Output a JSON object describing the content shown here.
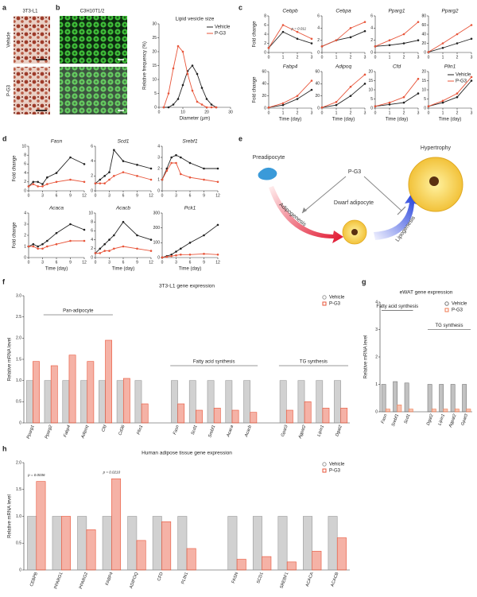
{
  "panel_labels": [
    "a",
    "b",
    "c",
    "d",
    "e",
    "f",
    "g",
    "h"
  ],
  "images": {
    "a_title": "3T3-L1",
    "a_rows": [
      "Vehicle",
      "P-G3"
    ],
    "b_title": "C3H10T1/2"
  },
  "diagram": {
    "nodes": [
      "Preadipocyte",
      "P-G3",
      "Dwarf adipocyte",
      "Hypertrophy"
    ],
    "edges": [
      "Adipogenesis",
      "Lipogenesis"
    ]
  },
  "chart_data": [
    {
      "type": "line",
      "title": "Lipid vesicle size",
      "xlabel": "Diameter (µm)",
      "ylabel": "Relative frequency (%)",
      "x": [
        2,
        4,
        6,
        8,
        10,
        12,
        14,
        16,
        18,
        20,
        22,
        24
      ],
      "xlim": [
        0,
        30
      ],
      "xticks": [
        0,
        10,
        20,
        30
      ],
      "ylim": [
        0,
        30
      ],
      "yticks": [
        0,
        5,
        10,
        15,
        20,
        25,
        30
      ],
      "legend": true,
      "series": [
        {
          "name": "Vehicle",
          "color": "#222222",
          "values": [
            0,
            0,
            1,
            3,
            8,
            13,
            15,
            12,
            7,
            3,
            1,
            0
          ]
        },
        {
          "name": "P-G3",
          "color": "#e8553a",
          "values": [
            0,
            5,
            14,
            22,
            20,
            12,
            6,
            2,
            1,
            0,
            0,
            0
          ]
        }
      ]
    },
    {
      "type": "line",
      "title": "Cebpb",
      "ylabel": "Fold change",
      "x": [
        0,
        1,
        2,
        3
      ],
      "xlim": [
        0,
        3
      ],
      "xticks": [
        0,
        1,
        2,
        3
      ],
      "ylim": [
        0,
        8
      ],
      "yticks": [
        0,
        2,
        4,
        6,
        8
      ],
      "annotations": [
        "p = 0.011"
      ],
      "series": [
        {
          "name": "Vehicle",
          "color": "#222222",
          "values": [
            1,
            4.5,
            3,
            2
          ]
        },
        {
          "name": "P-G3",
          "color": "#e8553a",
          "values": [
            1,
            6,
            4.5,
            3
          ]
        }
      ]
    },
    {
      "type": "line",
      "title": "Cebpa",
      "x": [
        0,
        1,
        2,
        3
      ],
      "xlim": [
        0,
        3
      ],
      "xticks": [
        0,
        1,
        2,
        3
      ],
      "ylim": [
        0,
        6
      ],
      "yticks": [
        0,
        2,
        4,
        6
      ],
      "series": [
        {
          "name": "Vehicle",
          "color": "#222222",
          "values": [
            1,
            2,
            2.5,
            3.5
          ]
        },
        {
          "name": "P-G3",
          "color": "#e8553a",
          "values": [
            1,
            2,
            4,
            5
          ]
        }
      ]
    },
    {
      "type": "line",
      "title": "Pparg1",
      "x": [
        0,
        1,
        2,
        3
      ],
      "xlim": [
        0,
        3
      ],
      "xticks": [
        0,
        1,
        2,
        3
      ],
      "ylim": [
        0,
        6
      ],
      "yticks": [
        0,
        2,
        4,
        6
      ],
      "series": [
        {
          "name": "Vehicle",
          "color": "#222222",
          "values": [
            1,
            1.2,
            1.5,
            2
          ]
        },
        {
          "name": "P-G3",
          "color": "#e8553a",
          "values": [
            1,
            2,
            3,
            5
          ]
        }
      ]
    },
    {
      "type": "line",
      "title": "Pparg2",
      "x": [
        0,
        1,
        2,
        3
      ],
      "xlim": [
        0,
        3
      ],
      "xticks": [
        0,
        1,
        2,
        3
      ],
      "ylim": [
        0,
        80
      ],
      "yticks": [
        0,
        20,
        40,
        60,
        80
      ],
      "series": [
        {
          "name": "Vehicle",
          "color": "#222222",
          "values": [
            1,
            10,
            20,
            30
          ]
        },
        {
          "name": "P-G3",
          "color": "#e8553a",
          "values": [
            1,
            20,
            40,
            60
          ]
        }
      ]
    },
    {
      "type": "line",
      "title": "Fabp4",
      "ylabel": "Fold change",
      "xlabel": "Time (day)",
      "x": [
        0,
        1,
        2,
        3
      ],
      "xlim": [
        0,
        3
      ],
      "xticks": [
        0,
        1,
        2,
        3
      ],
      "ylim": [
        0,
        60
      ],
      "yticks": [
        0,
        20,
        40,
        60
      ],
      "series": [
        {
          "name": "Vehicle",
          "color": "#222222",
          "values": [
            1,
            5,
            15,
            30
          ]
        },
        {
          "name": "P-G3",
          "color": "#e8553a",
          "values": [
            1,
            8,
            20,
            45
          ]
        }
      ]
    },
    {
      "type": "line",
      "title": "Adipoq",
      "xlabel": "Time (day)",
      "x": [
        0,
        1,
        2,
        3
      ],
      "xlim": [
        0,
        3
      ],
      "xticks": [
        0,
        1,
        2,
        3
      ],
      "ylim": [
        0,
        60
      ],
      "yticks": [
        0,
        20,
        40,
        60
      ],
      "series": [
        {
          "name": "Vehicle",
          "color": "#222222",
          "values": [
            1,
            5,
            20,
            40
          ]
        },
        {
          "name": "P-G3",
          "color": "#e8553a",
          "values": [
            1,
            10,
            35,
            55
          ]
        }
      ]
    },
    {
      "type": "line",
      "title": "Cfd",
      "xlabel": "Time (day)",
      "x": [
        0,
        1,
        2,
        3
      ],
      "xlim": [
        0,
        3
      ],
      "xticks": [
        0,
        1,
        2,
        3
      ],
      "ylim": [
        0,
        20
      ],
      "yticks": [
        0,
        5,
        10,
        15,
        20
      ],
      "series": [
        {
          "name": "Vehicle",
          "color": "#222222",
          "values": [
            1,
            2,
            3,
            8
          ]
        },
        {
          "name": "P-G3",
          "color": "#e8553a",
          "values": [
            1,
            3,
            6,
            16
          ]
        }
      ]
    },
    {
      "type": "line",
      "title": "Plin1",
      "xlabel": "Time (day)",
      "x": [
        0,
        1,
        2,
        3
      ],
      "xlim": [
        0,
        3
      ],
      "xticks": [
        0,
        1,
        2,
        3
      ],
      "ylim": [
        0,
        20
      ],
      "yticks": [
        0,
        5,
        10,
        15,
        20
      ],
      "legend": true,
      "series": [
        {
          "name": "Vehicle",
          "color": "#222222",
          "values": [
            1,
            3,
            6,
            15
          ]
        },
        {
          "name": "P-G3",
          "color": "#e8553a",
          "values": [
            1,
            4,
            8,
            17
          ]
        }
      ]
    },
    {
      "type": "line",
      "title": "Fasn",
      "ylabel": "Fold change",
      "x": [
        0,
        1,
        2,
        3,
        4,
        6,
        9,
        12
      ],
      "xlim": [
        0,
        12
      ],
      "xticks": [
        0,
        3,
        6,
        9,
        12
      ],
      "ylim": [
        0,
        10
      ],
      "yticks": [
        0,
        2,
        4,
        6,
        8,
        10
      ],
      "series": [
        {
          "name": "Vehicle",
          "color": "#222222",
          "values": [
            1,
            2,
            2,
            1.5,
            3,
            4,
            7.5,
            6
          ]
        },
        {
          "name": "P-G3",
          "color": "#e8553a",
          "values": [
            1,
            1.5,
            1,
            1,
            1.5,
            2,
            2.5,
            2
          ]
        }
      ]
    },
    {
      "type": "line",
      "title": "Scd1",
      "x": [
        0,
        1,
        2,
        3,
        4,
        6,
        9,
        12
      ],
      "xlim": [
        0,
        12
      ],
      "xticks": [
        0,
        3,
        6,
        9,
        12
      ],
      "ylim": [
        0,
        6
      ],
      "yticks": [
        0,
        2,
        4,
        6
      ],
      "series": [
        {
          "name": "Vehicle",
          "color": "#222222",
          "values": [
            1,
            1.5,
            2,
            2.5,
            5.5,
            4,
            3.5,
            3
          ]
        },
        {
          "name": "P-G3",
          "color": "#e8553a",
          "values": [
            1,
            1,
            1,
            1.5,
            2,
            2.5,
            2,
            1.5
          ]
        }
      ]
    },
    {
      "type": "line",
      "title": "Srebf1",
      "x": [
        0,
        1,
        2,
        3,
        4,
        6,
        9,
        12
      ],
      "xlim": [
        0,
        12
      ],
      "xticks": [
        0,
        3,
        6,
        9,
        12
      ],
      "ylim": [
        0,
        4
      ],
      "yticks": [
        0,
        1,
        2,
        3,
        4
      ],
      "series": [
        {
          "name": "Vehicle",
          "color": "#222222",
          "values": [
            1,
            2,
            3,
            3.2,
            3,
            2.5,
            2,
            2
          ]
        },
        {
          "name": "P-G3",
          "color": "#e8553a",
          "values": [
            1,
            1.8,
            2.5,
            2.5,
            1.5,
            1.2,
            1,
            0.8
          ]
        }
      ]
    },
    {
      "type": "line",
      "title": "Acaca",
      "ylabel": "Fold change",
      "xlabel": "Time (day)",
      "x": [
        0,
        1,
        2,
        3,
        4,
        6,
        9,
        12
      ],
      "xlim": [
        0,
        12
      ],
      "xticks": [
        0,
        3,
        6,
        9,
        12
      ],
      "ylim": [
        0,
        4
      ],
      "yticks": [
        0,
        1,
        2,
        3,
        4
      ],
      "series": [
        {
          "name": "Vehicle",
          "color": "#222222",
          "values": [
            1,
            1.2,
            1,
            1.2,
            1.5,
            2.2,
            3,
            2.5
          ]
        },
        {
          "name": "P-G3",
          "color": "#e8553a",
          "values": [
            1,
            1,
            0.8,
            0.8,
            1,
            1.2,
            1.5,
            1.5
          ]
        }
      ]
    },
    {
      "type": "line",
      "title": "Acacb",
      "xlabel": "Time (day)",
      "x": [
        0,
        1,
        2,
        3,
        4,
        6,
        9,
        12
      ],
      "xlim": [
        0,
        12
      ],
      "xticks": [
        0,
        3,
        6,
        9,
        12
      ],
      "ylim": [
        0,
        10
      ],
      "yticks": [
        0,
        2,
        4,
        6,
        8,
        10
      ],
      "series": [
        {
          "name": "Vehicle",
          "color": "#222222",
          "values": [
            1,
            2,
            3,
            4,
            5,
            8,
            5,
            4
          ]
        },
        {
          "name": "P-G3",
          "color": "#e8553a",
          "values": [
            1,
            1,
            1.5,
            1.5,
            2,
            2.5,
            2,
            1.5
          ]
        }
      ]
    },
    {
      "type": "line",
      "title": "Pck1",
      "xlabel": "Time (day)",
      "x": [
        0,
        1,
        2,
        3,
        4,
        6,
        9,
        12
      ],
      "xlim": [
        0,
        12
      ],
      "xticks": [
        0,
        3,
        6,
        9,
        12
      ],
      "ylim": [
        0,
        300
      ],
      "yticks": [
        0,
        100,
        200,
        300
      ],
      "series": [
        {
          "name": "Vehicle",
          "color": "#222222",
          "values": [
            1,
            10,
            20,
            40,
            60,
            100,
            150,
            220
          ]
        },
        {
          "name": "P-G3",
          "color": "#e8553a",
          "values": [
            1,
            5,
            10,
            15,
            20,
            20,
            25,
            20
          ]
        }
      ]
    },
    {
      "type": "bar",
      "title": "3T3-L1 gene expression",
      "ylabel": "Relative mRNA level",
      "categories": [
        "Pparg1",
        "Pparg2",
        "Fabp4",
        "Adipoq",
        "Cfd",
        "Cd36",
        "Plin1",
        null,
        "Fasn",
        "Scd1",
        "Srebf1",
        "Acaca",
        "Acacb",
        null,
        "Gpat3",
        "Agpat2",
        "Lipin1",
        "Dgat2"
      ],
      "groups": [
        "Pan-adipocyte",
        "Fatty acid synthesis",
        "TG synthesis"
      ],
      "ylim": [
        0,
        3
      ],
      "yticks": [
        0,
        0.5,
        {
          "value": 1,
          "label": "1.0"
        },
        1.5,
        {
          "value": 2,
          "label": "2.0"
        },
        2.5,
        {
          "value": 3,
          "label": "3.0"
        }
      ],
      "legend": true,
      "series": [
        {
          "name": "Vehicle",
          "color": "#9a9a9a",
          "values": [
            1,
            1,
            1,
            1,
            1,
            1,
            1,
            null,
            1,
            1,
            1,
            1,
            1,
            null,
            1,
            1,
            1,
            1
          ]
        },
        {
          "name": "P-G3",
          "color": "#e8553a",
          "values": [
            1.45,
            1.35,
            1.6,
            1.45,
            1.95,
            1.05,
            0.45,
            null,
            0.45,
            0.3,
            0.35,
            0.3,
            0.25,
            null,
            0.3,
            0.5,
            0.35,
            0.35
          ]
        }
      ]
    },
    {
      "type": "bar",
      "title": "eWAT gene expression",
      "ylabel": "Relative mRNA level",
      "categories": [
        "Fasn",
        "Srebf1",
        "Scd1",
        null,
        "Dgat2",
        "Lipin1",
        "Agpat2",
        "Gpat3"
      ],
      "groups": [
        "Fatty acid synthesis",
        "TG synthesis"
      ],
      "ylim": [
        0,
        4
      ],
      "yticks": [
        0,
        1,
        2,
        3,
        4
      ],
      "legend": true,
      "series": [
        {
          "name": "Vehicle",
          "color": "#777777",
          "values": [
            1,
            1.1,
            1.05,
            null,
            1,
            1,
            1,
            1
          ]
        },
        {
          "name": "P-G3",
          "color": "#f07a50",
          "values": [
            0.1,
            0.25,
            0.1,
            null,
            0.1,
            0.1,
            0.1,
            0.1
          ]
        }
      ]
    },
    {
      "type": "bar",
      "title": "Human adipose tissue gene expression",
      "ylabel": "Relative mRNA level",
      "categories": [
        "CEBPB",
        "PPARG1",
        "PPARG2",
        "FABP4",
        "ADIPOQ",
        "CFD",
        "PLIN1",
        null,
        "FASN",
        "SCD1",
        "SREBF1",
        "ACACA",
        "ACACB"
      ],
      "annotations": [
        "p = 0.0036",
        "p = 0.0210"
      ],
      "ylim": [
        0,
        2
      ],
      "yticks": [
        0,
        0.5,
        {
          "value": 1,
          "label": "1.0"
        },
        1.5,
        {
          "value": 2,
          "label": "2.0"
        }
      ],
      "legend": true,
      "series": [
        {
          "name": "Vehicle",
          "color": "#9a9a9a",
          "values": [
            1,
            1,
            1,
            1,
            1,
            1,
            1,
            null,
            1,
            1,
            1,
            1,
            1
          ]
        },
        {
          "name": "P-G3",
          "color": "#e8553a",
          "values": [
            1.65,
            1.0,
            0.75,
            1.7,
            0.55,
            0.9,
            0.4,
            null,
            0.2,
            0.25,
            0.15,
            0.35,
            0.6
          ]
        }
      ]
    }
  ]
}
